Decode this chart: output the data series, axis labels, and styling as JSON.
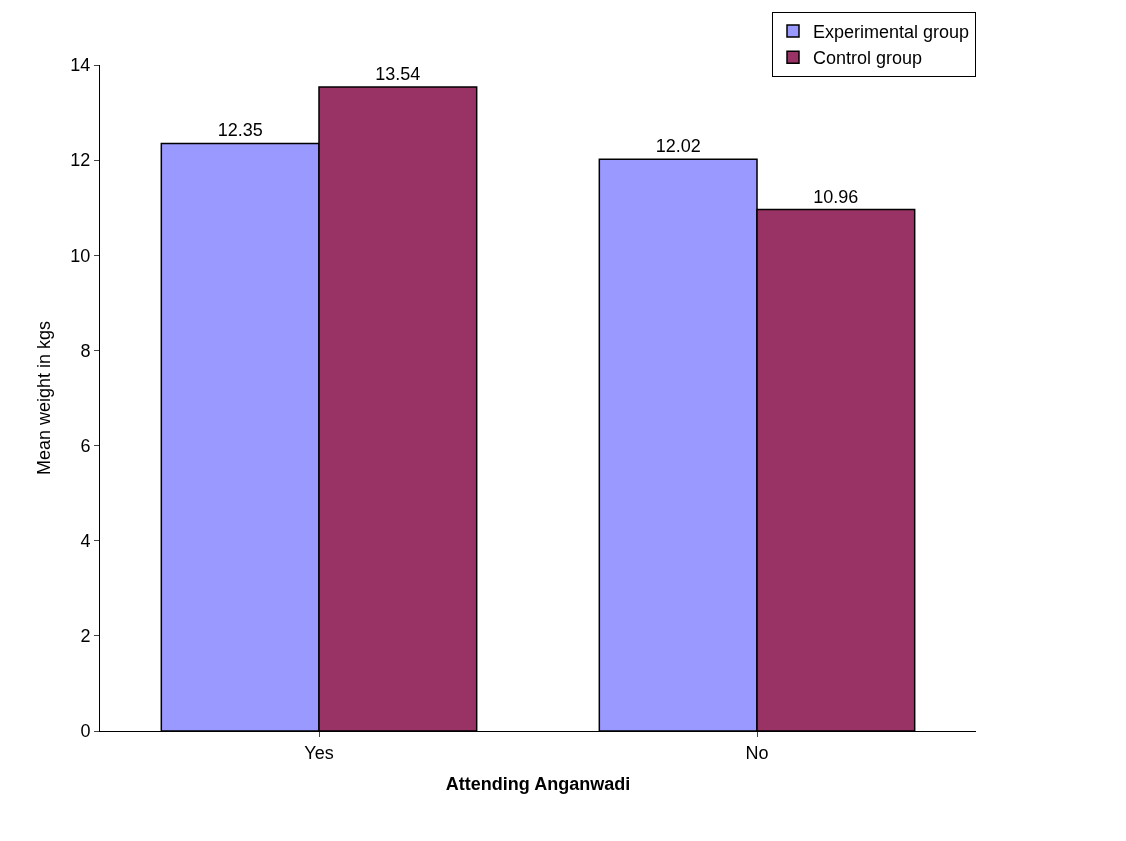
{
  "chart_data": {
    "type": "bar",
    "xlabel": "Attending Anganwadi",
    "ylabel": "Mean weight in kgs",
    "categories": [
      "Yes",
      "No"
    ],
    "series": [
      {
        "name": "Experimental group",
        "color": "#9999ff",
        "values": [
          12.35,
          12.02
        ]
      },
      {
        "name": "Control group",
        "color": "#993366",
        "values": [
          13.54,
          10.96
        ]
      }
    ],
    "ylim": [
      0,
      14
    ],
    "yticks": [
      0,
      2,
      4,
      6,
      8,
      10,
      12,
      14
    ],
    "grid": false,
    "legend": "top right",
    "data_labels": true
  }
}
